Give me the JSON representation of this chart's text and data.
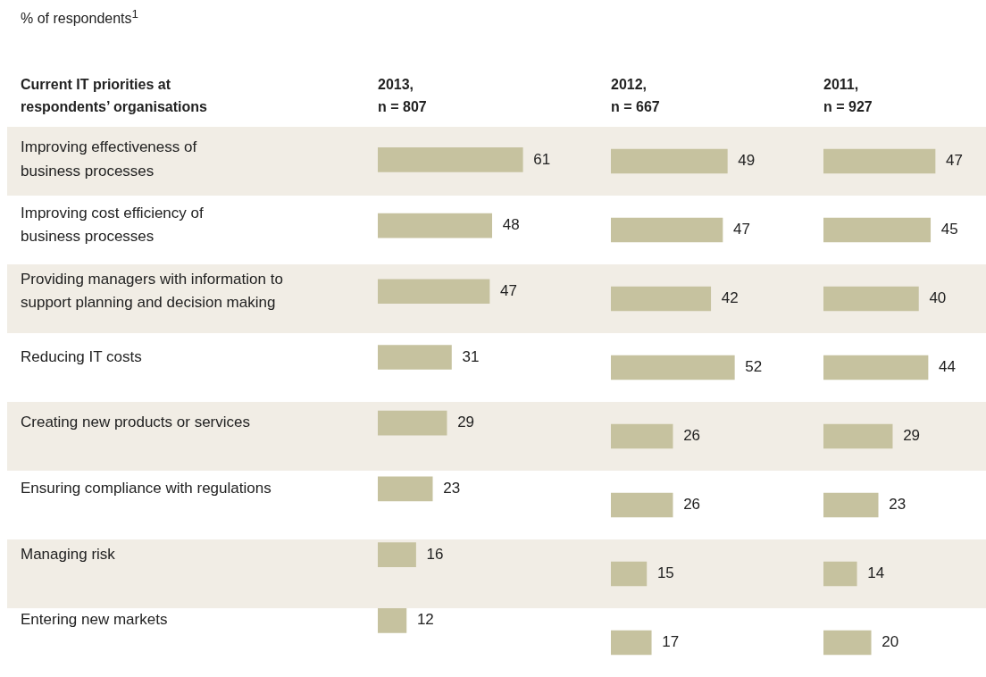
{
  "chart_data": [
    {
      "type": "bar",
      "orientation": "horizontal",
      "subtitle": "% of respondents$^{1}$",
      "ylabel": "Current IT priorities at\nrespondents’ organisations",
      "title": "2013,\nn = 807",
      "categories": [
        "Improving effectiveness of\nbusiness processes",
        "Improving cost efficiency of\nbusiness processes",
        "Providing managers with information to\nsupport planning and decision making",
        "Reducing IT costs",
        "Creating new products or services",
        "Ensuring compliance with regulations",
        "Managing risk",
        "Entering new markets"
      ],
      "values": [
        61,
        48,
        47,
        31,
        29,
        23,
        16,
        12
      ],
      "color": "#c6c29f",
      "data_labels": true,
      "tick_labels": "y"
    },
    {
      "type": "bar",
      "orientation": "horizontal",
      "title": "2012,\nn = 667",
      "categories": [
        null,
        null,
        null,
        null,
        null,
        null,
        null,
        null
      ],
      "values": [
        49,
        47,
        42,
        52,
        26,
        26,
        15,
        17
      ],
      "color": "#c6c29f",
      "data_labels": true,
      "tick_labels": false
    },
    {
      "type": "bar",
      "orientation": "horizontal",
      "title": "2011,\nn = 927",
      "categories": [
        null,
        null,
        null,
        null,
        null,
        null,
        null,
        null
      ],
      "values": [
        47,
        45,
        40,
        44,
        29,
        23,
        14,
        20
      ],
      "color": "#c6c29f",
      "data_labels": true,
      "tick_labels": false
    }
  ]
}
